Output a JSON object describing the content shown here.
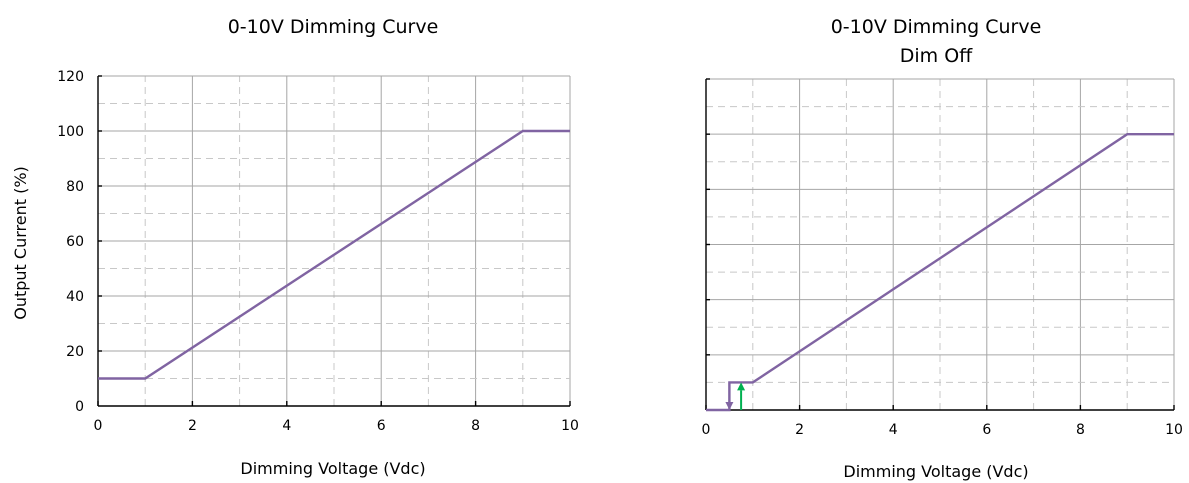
{
  "chart_data": [
    {
      "type": "line",
      "title": "0-10V Dimming Curve",
      "xlabel": "Dimming Voltage (Vdc)",
      "ylabel": "Output Current (%)",
      "xlim": [
        0,
        10
      ],
      "ylim": [
        0,
        120
      ],
      "x_ticks": [
        0,
        2,
        4,
        6,
        8,
        10
      ],
      "y_ticks": [
        0,
        20,
        40,
        60,
        80,
        100,
        120
      ],
      "grid": true,
      "series": [
        {
          "x": [
            0,
            1,
            9,
            10
          ],
          "y": [
            10,
            10,
            100,
            100
          ]
        }
      ],
      "colors": {
        "line": "#8064a2"
      }
    },
    {
      "type": "line",
      "title": "0-10V Dimming Curve",
      "subtitle": "Dim Off",
      "xlabel": "Dimming Voltage (Vdc)",
      "ylabel": "",
      "xlim": [
        0,
        10
      ],
      "ylim": [
        0,
        120
      ],
      "x_ticks": [
        0,
        2,
        4,
        6,
        8,
        10
      ],
      "y_ticks": [],
      "grid": true,
      "series": [
        {
          "x": [
            0,
            0.5,
            0.5,
            1,
            9,
            10
          ],
          "y": [
            0,
            0,
            10,
            10,
            100,
            100
          ]
        }
      ],
      "annotations": [
        {
          "type": "arrow-down",
          "x": 0.5,
          "y_from": 10,
          "y_to": 0,
          "color": "#8064a2"
        },
        {
          "type": "arrow-up",
          "x": 0.75,
          "y_from": 0,
          "y_to": 10,
          "color": "#00b050"
        }
      ],
      "colors": {
        "line": "#8064a2"
      }
    }
  ]
}
